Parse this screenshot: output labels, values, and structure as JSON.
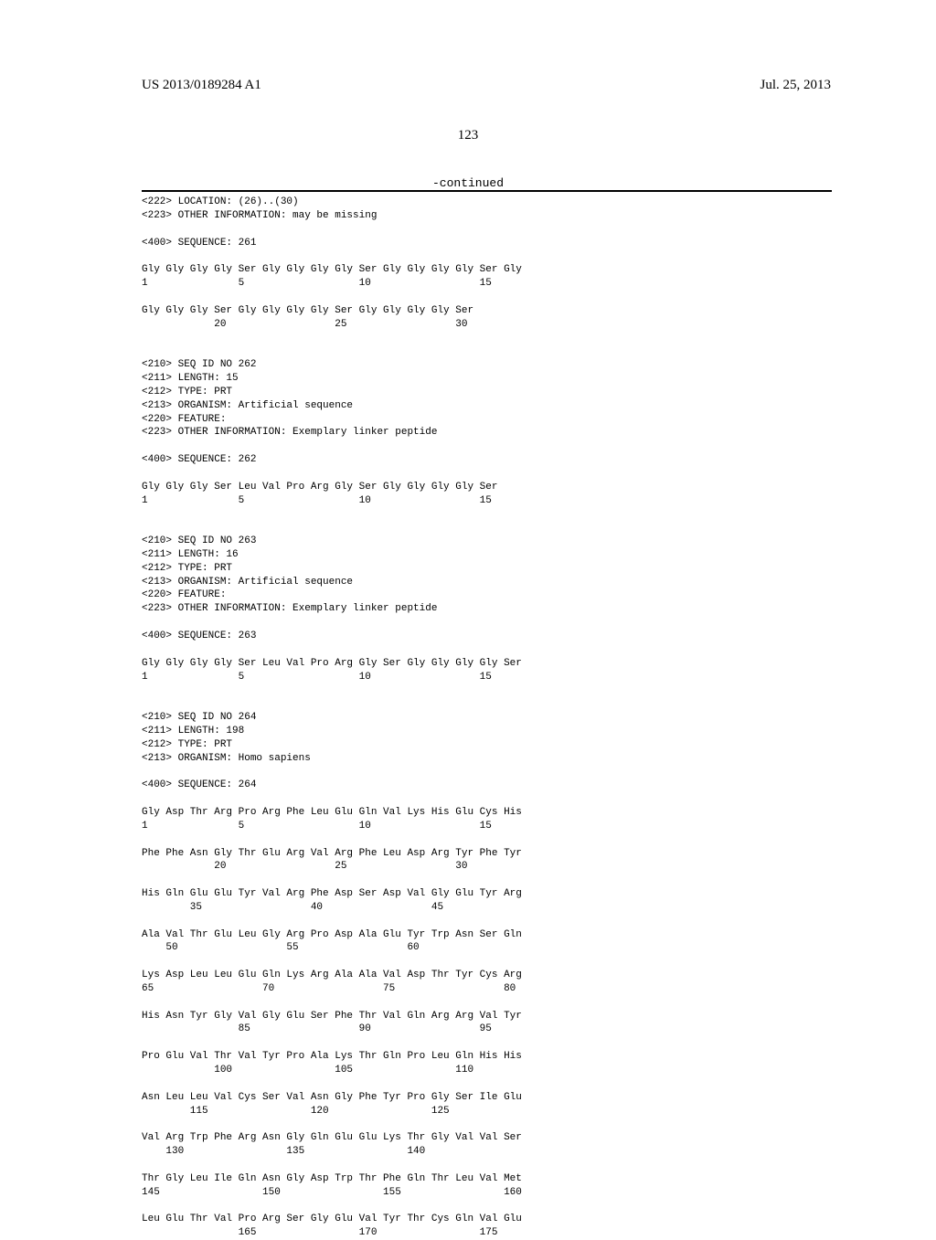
{
  "header": {
    "pub_number": "US 2013/0189284 A1",
    "pub_date": "Jul. 25, 2013",
    "page_number": "123",
    "continued": "-continued"
  },
  "content": "<222> LOCATION: (26)..(30)\n<223> OTHER INFORMATION: may be missing\n\n<400> SEQUENCE: 261\n\nGly Gly Gly Gly Ser Gly Gly Gly Gly Ser Gly Gly Gly Gly Ser Gly\n1               5                   10                  15\n\nGly Gly Gly Ser Gly Gly Gly Gly Ser Gly Gly Gly Gly Ser\n            20                  25                  30\n\n\n<210> SEQ ID NO 262\n<211> LENGTH: 15\n<212> TYPE: PRT\n<213> ORGANISM: Artificial sequence\n<220> FEATURE:\n<223> OTHER INFORMATION: Exemplary linker peptide\n\n<400> SEQUENCE: 262\n\nGly Gly Gly Ser Leu Val Pro Arg Gly Ser Gly Gly Gly Gly Ser\n1               5                   10                  15\n\n\n<210> SEQ ID NO 263\n<211> LENGTH: 16\n<212> TYPE: PRT\n<213> ORGANISM: Artificial sequence\n<220> FEATURE:\n<223> OTHER INFORMATION: Exemplary linker peptide\n\n<400> SEQUENCE: 263\n\nGly Gly Gly Gly Ser Leu Val Pro Arg Gly Ser Gly Gly Gly Gly Ser\n1               5                   10                  15\n\n\n<210> SEQ ID NO 264\n<211> LENGTH: 198\n<212> TYPE: PRT\n<213> ORGANISM: Homo sapiens\n\n<400> SEQUENCE: 264\n\nGly Asp Thr Arg Pro Arg Phe Leu Glu Gln Val Lys His Glu Cys His\n1               5                   10                  15\n\nPhe Phe Asn Gly Thr Glu Arg Val Arg Phe Leu Asp Arg Tyr Phe Tyr\n            20                  25                  30\n\nHis Gln Glu Glu Tyr Val Arg Phe Asp Ser Asp Val Gly Glu Tyr Arg\n        35                  40                  45\n\nAla Val Thr Glu Leu Gly Arg Pro Asp Ala Glu Tyr Trp Asn Ser Gln\n    50                  55                  60\n\nLys Asp Leu Leu Glu Gln Lys Arg Ala Ala Val Asp Thr Tyr Cys Arg\n65                  70                  75                  80\n\nHis Asn Tyr Gly Val Gly Glu Ser Phe Thr Val Gln Arg Arg Val Tyr\n                85                  90                  95\n\nPro Glu Val Thr Val Tyr Pro Ala Lys Thr Gln Pro Leu Gln His His\n            100                 105                 110\n\nAsn Leu Leu Val Cys Ser Val Asn Gly Phe Tyr Pro Gly Ser Ile Glu\n        115                 120                 125\n\nVal Arg Trp Phe Arg Asn Gly Gln Glu Glu Lys Thr Gly Val Val Ser\n    130                 135                 140\n\nThr Gly Leu Ile Gln Asn Gly Asp Trp Thr Phe Gln Thr Leu Val Met\n145                 150                 155                 160\n\nLeu Glu Thr Val Pro Arg Ser Gly Glu Val Tyr Thr Cys Gln Val Glu\n                165                 170                 175"
}
